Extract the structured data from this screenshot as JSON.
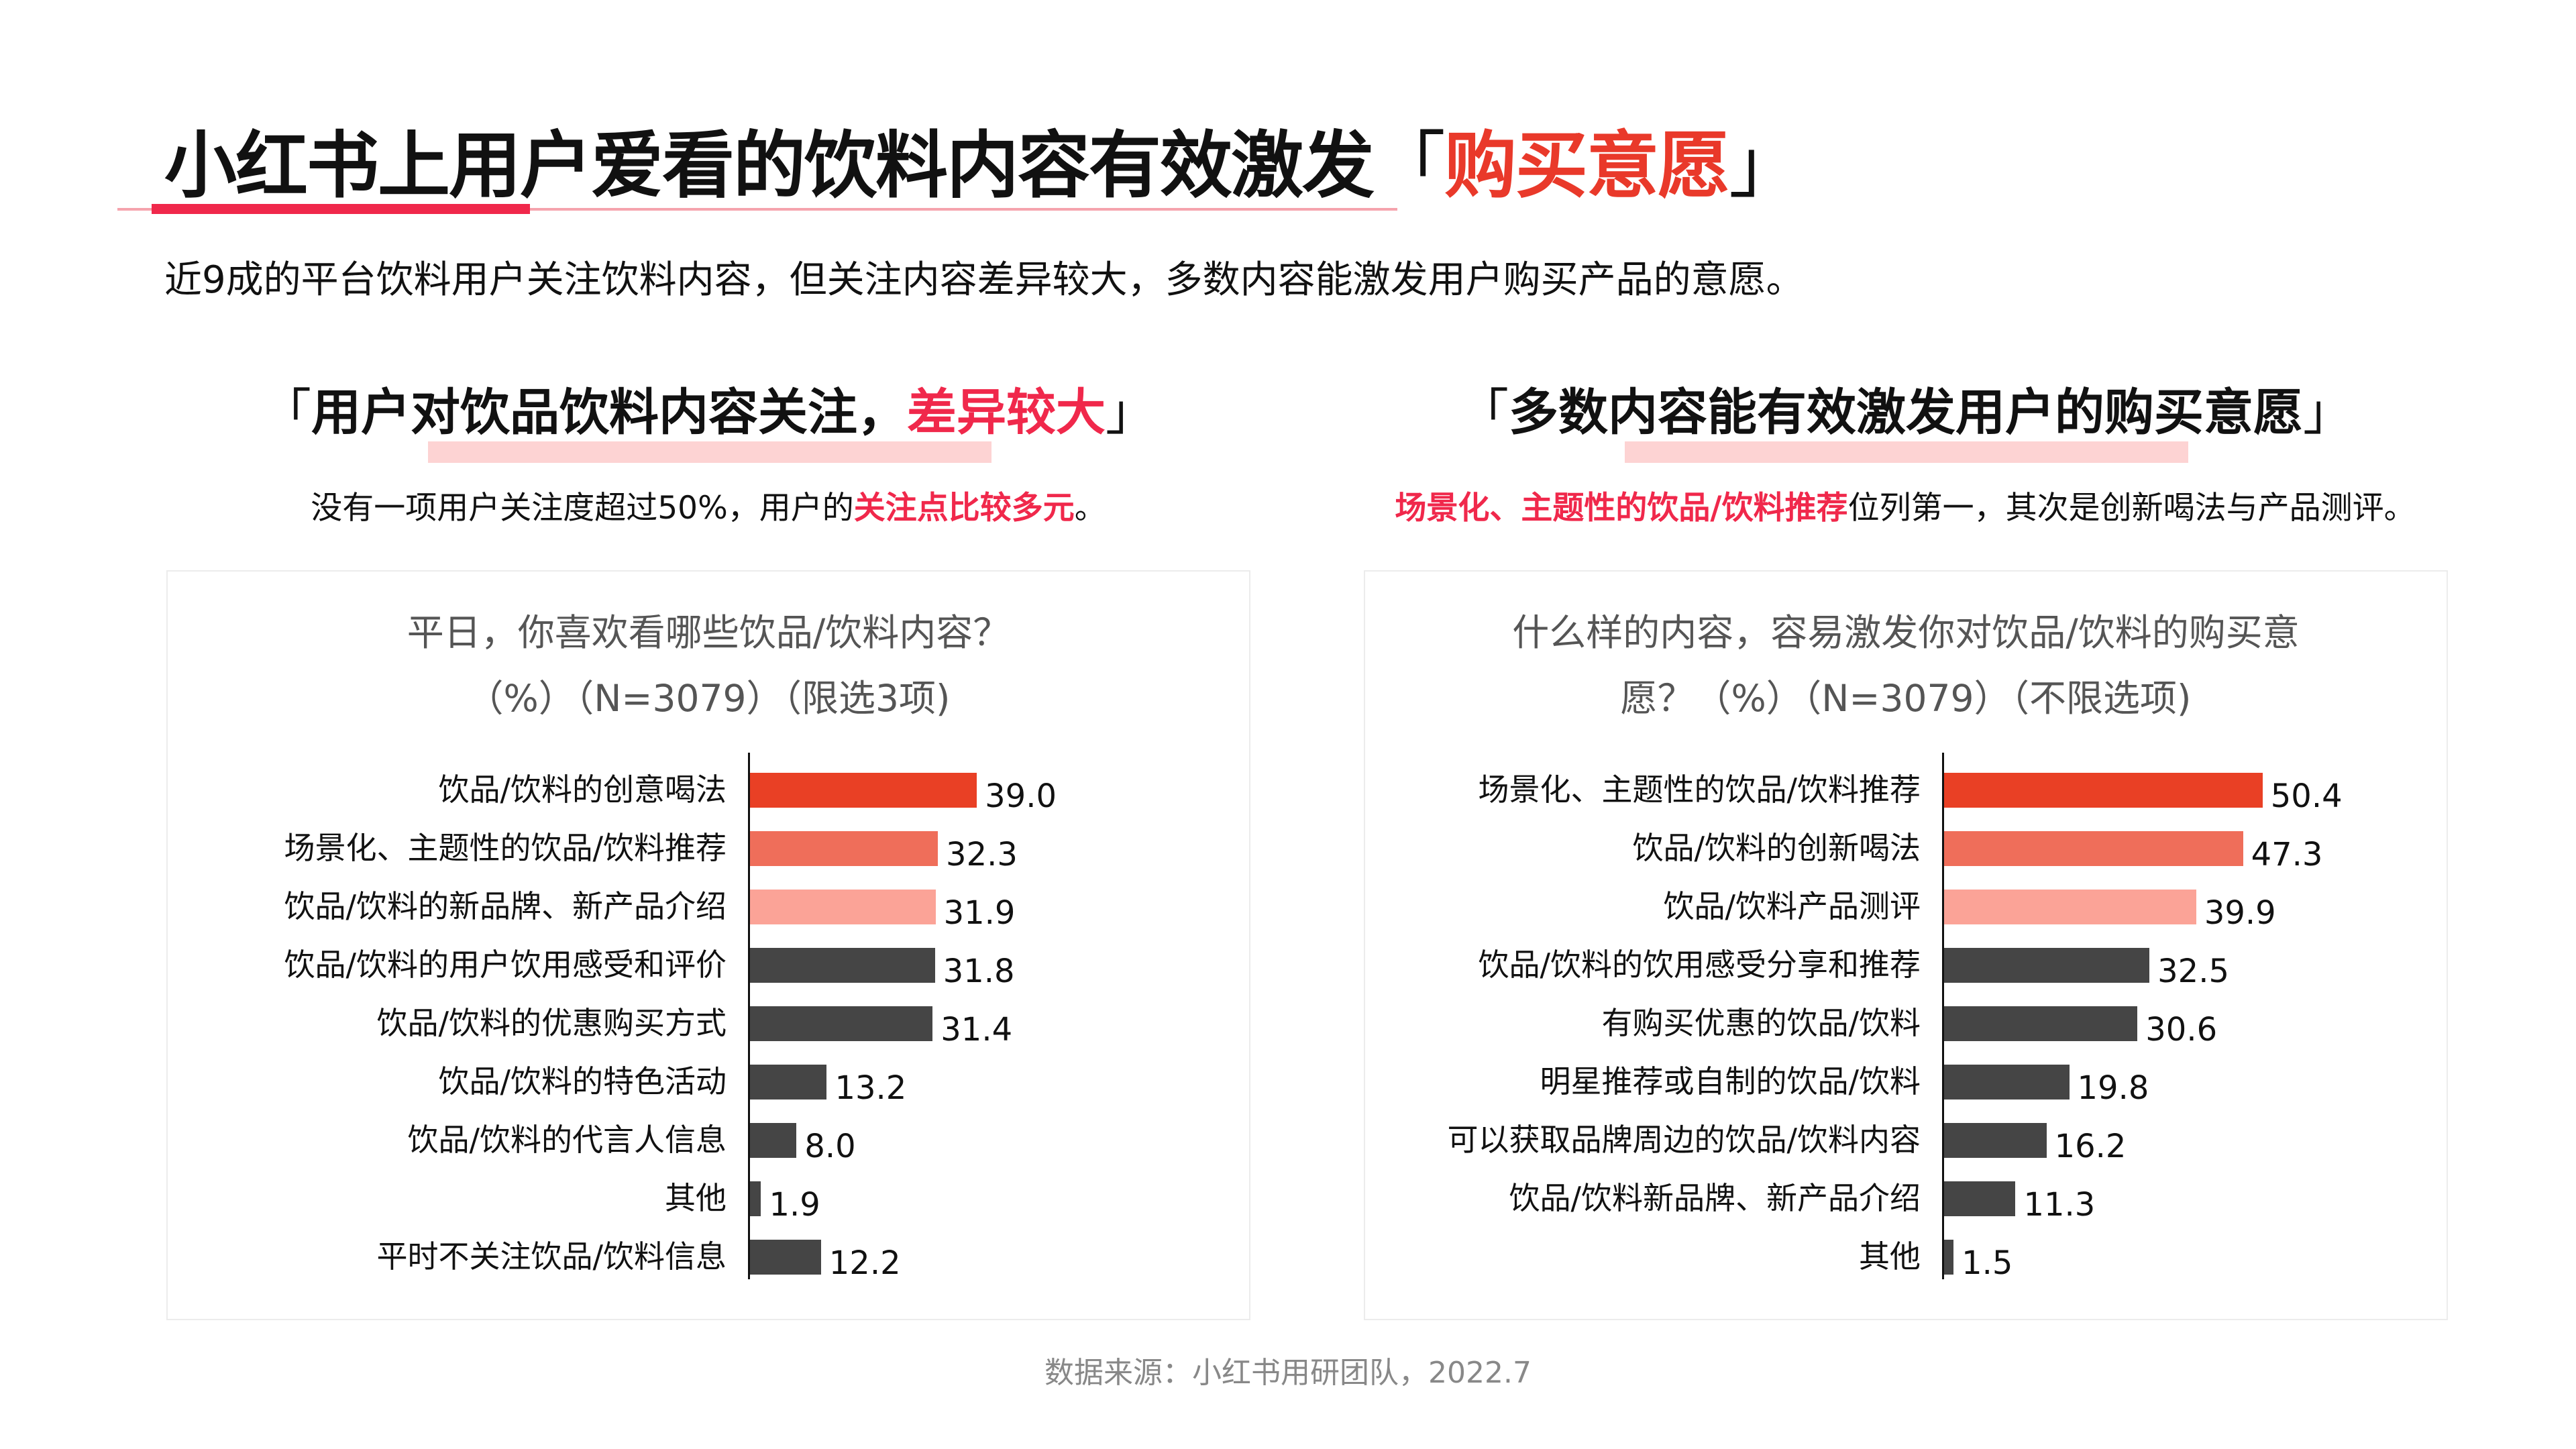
{
  "header": {
    "title_main": "小红书上用户爱看的饮料内容有效激发",
    "title_open_bracket": "「",
    "title_highlight": "购买意愿",
    "title_close_bracket": "」",
    "subtitle": "近9成的平台饮料用户关注饮料内容，但关注内容差异较大，多数内容能激发用户购买产品的意愿。"
  },
  "left_section": {
    "heading_open": "「",
    "heading_text": "用户对饮品饮料内容关注，",
    "heading_highlight": "差异较大",
    "heading_close": "」",
    "sub_text": "没有一项用户关注度超过50%，用户的",
    "sub_highlight": "关注点比较多元",
    "sub_end": "。"
  },
  "right_section": {
    "heading_open": "「",
    "heading_text": "多数内容能有效激发用户的购买意愿",
    "heading_close": "」",
    "sub_highlight": "场景化、主题性的饮品/饮料推荐",
    "sub_text": "位列第一，其次是创新喝法与产品测评。"
  },
  "colors": {
    "bar_rank1": "#e94025",
    "bar_rank2": "#ef6e5a",
    "bar_rank3": "#fba397",
    "bar_other": "#454545",
    "accent_red": "#f0284b",
    "title_highlight": "#e9392a",
    "highlight_pink": "#fdd3d3"
  },
  "chart_data": [
    {
      "type": "bar",
      "orientation": "horizontal",
      "title_line1": "平日，你喜欢看哪些饮品/饮料内容？",
      "title_line2": "（%）（N=3079）（限选3项)",
      "categories": [
        "饮品/饮料的创意喝法",
        "场景化、主题性的饮品/饮料推荐",
        "饮品/饮料的新品牌、新产品介绍",
        "饮品/饮料的用户饮用感受和评价",
        "饮品/饮料的优惠购买方式",
        "饮品/饮料的特色活动",
        "饮品/饮料的代言人信息",
        "其他",
        "平时不关注饮品/饮料信息"
      ],
      "values": [
        39.0,
        32.3,
        31.9,
        31.8,
        31.4,
        13.2,
        8.0,
        1.9,
        12.2
      ],
      "value_labels": [
        "39.0",
        "32.3",
        "31.9",
        "31.8",
        "31.4",
        "13.2",
        "8.0",
        "1.9",
        "12.2"
      ],
      "unit": "%",
      "xlabel": "",
      "ylabel": "",
      "grid": false,
      "legend": false
    },
    {
      "type": "bar",
      "orientation": "horizontal",
      "title_line1": "什么样的内容，容易激发你对饮品/饮料的购买意",
      "title_line2": "愿？（%）（N=3079）（不限选项)",
      "categories": [
        "场景化、主题性的饮品/饮料推荐",
        "饮品/饮料的创新喝法",
        "饮品/饮料产品测评",
        "饮品/饮料的饮用感受分享和推荐",
        "有购买优惠的饮品/饮料",
        "明星推荐或自制的饮品/饮料",
        "可以获取品牌周边的饮品/饮料内容",
        "饮品/饮料新品牌、新产品介绍",
        "其他"
      ],
      "values": [
        50.4,
        47.3,
        39.9,
        32.5,
        30.6,
        19.8,
        16.2,
        11.3,
        1.5
      ],
      "value_labels": [
        "50.4",
        "47.3",
        "39.9",
        "32.5",
        "30.6",
        "19.8",
        "16.2",
        "11.3",
        "1.5"
      ],
      "unit": "%",
      "xlabel": "",
      "ylabel": "",
      "grid": false,
      "legend": false
    }
  ],
  "footer": {
    "source": "数据来源：小红书用研团队，2022.7"
  }
}
